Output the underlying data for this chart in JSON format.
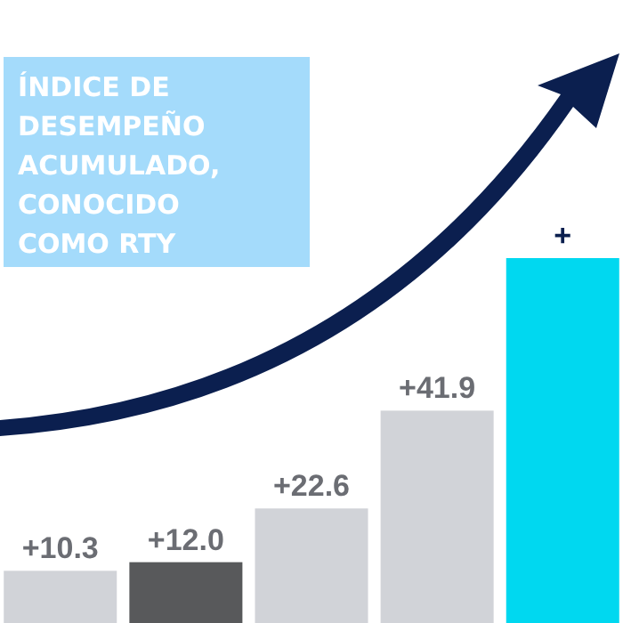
{
  "chart_data": {
    "type": "bar",
    "title": "ÍNDICE DE\nDESEMPEÑO\nACUMULADO,\nCONOCIDO\nCOMO RTY",
    "categories": [
      null,
      null,
      null,
      null,
      null
    ],
    "values": [
      10.3,
      12.0,
      22.6,
      41.9,
      72
    ],
    "colors": [
      "#d1d3d8",
      "#58595b",
      "#d1d3d8",
      "#d1d3d8",
      "#00d8f0"
    ],
    "value_labels": [
      "+10.3",
      "+12.0",
      "+22.6",
      "+41.9",
      null
    ],
    "annotations": [
      "+"
    ]
  }
}
